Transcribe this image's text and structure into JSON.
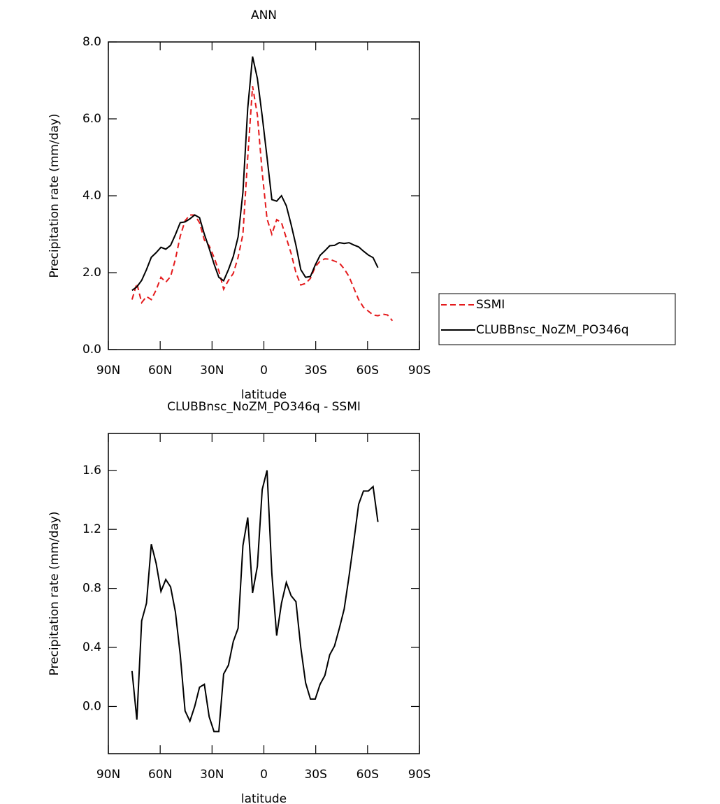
{
  "chart_data": [
    {
      "type": "line",
      "title": "ANN",
      "xlabel": "latitude",
      "ylabel": "Precipitation rate (mm/day)",
      "x": [
        76.3,
        73.51,
        70.72,
        67.93,
        65.14,
        62.35,
        59.56,
        56.77,
        53.98,
        51.19,
        48.4,
        45.61,
        42.82,
        40.03,
        37.24,
        34.45,
        31.66,
        28.87,
        26.08,
        23.29,
        20.5,
        17.71,
        14.92,
        12.13,
        9.34,
        6.55,
        3.76,
        0.97,
        -1.82,
        -4.61,
        -7.4,
        -10.19,
        -12.98,
        -15.77,
        -18.56,
        -21.35,
        -24.14,
        -26.93,
        -29.72,
        -32.51,
        -35.3,
        -38.09,
        -40.88,
        -43.67,
        -46.46,
        -49.25,
        -52.04,
        -54.83,
        -57.62,
        -60.41,
        -63.2,
        -65.99,
        -68.78,
        -71.57,
        -74.36
      ],
      "series": [
        {
          "name": "SSMI",
          "color": "#e41a1c",
          "dash": true,
          "values": [
            1.3,
            1.72,
            1.22,
            1.38,
            1.3,
            1.55,
            1.88,
            1.75,
            1.9,
            2.35,
            2.95,
            3.35,
            3.5,
            3.5,
            3.3,
            2.85,
            2.7,
            2.4,
            2.05,
            1.57,
            1.8,
            1.98,
            2.4,
            3.0,
            5.0,
            6.85,
            6.1,
            4.6,
            3.4,
            3.0,
            3.38,
            3.3,
            2.9,
            2.5,
            2.0,
            1.68,
            1.72,
            1.85,
            2.15,
            2.3,
            2.36,
            2.35,
            2.3,
            2.25,
            2.1,
            1.9,
            1.6,
            1.3,
            1.1,
            1.0,
            0.9,
            0.88,
            0.92,
            0.9,
            0.75
          ]
        },
        {
          "name": "CLUBBnsc_NoZM_PO346q",
          "color": "#000000",
          "dash": false,
          "values": [
            1.54,
            1.63,
            1.8,
            2.08,
            2.4,
            2.52,
            2.66,
            2.61,
            2.71,
            2.99,
            3.3,
            3.32,
            3.4,
            3.5,
            3.43,
            3.0,
            2.63,
            2.23,
            1.88,
            1.79,
            2.08,
            2.42,
            2.93,
            4.09,
            6.28,
            7.62,
            7.05,
            6.07,
            5.0,
            3.9,
            3.86,
            4.0,
            3.74,
            3.25,
            2.71,
            2.08,
            1.88,
            1.9,
            2.2,
            2.45,
            2.57,
            2.7,
            2.71,
            2.78,
            2.76,
            2.78,
            2.72,
            2.67,
            2.56,
            2.46,
            2.39,
            2.13,
            null,
            null,
            null
          ]
        }
      ],
      "xlim": [
        90,
        -90
      ],
      "xticks": [
        {
          "value": 90,
          "label": "90N"
        },
        {
          "value": 60,
          "label": "60N"
        },
        {
          "value": 30,
          "label": "30N"
        },
        0,
        {
          "value": -30,
          "label": "30S"
        },
        {
          "value": -60,
          "label": "60S"
        },
        {
          "value": -90,
          "label": "90S"
        }
      ],
      "ylim": [
        0,
        8
      ],
      "yticks": [
        {
          "value": 0,
          "label": "0.0"
        },
        {
          "value": 2,
          "label": "2.0"
        },
        {
          "value": 4,
          "label": "4.0"
        },
        {
          "value": 6,
          "label": "6.0"
        },
        {
          "value": 8,
          "label": "8.0"
        }
      ],
      "legend": "right"
    },
    {
      "type": "line",
      "title": "CLUBBnsc_NoZM_PO346q - SSMI",
      "xlabel": "latitude",
      "ylabel": "Precipitation rate (mm/day)",
      "x": [
        76.3,
        73.51,
        70.72,
        67.93,
        65.14,
        62.35,
        59.56,
        56.77,
        53.98,
        51.19,
        48.4,
        45.61,
        42.82,
        40.03,
        37.24,
        34.45,
        31.66,
        28.87,
        26.08,
        23.29,
        20.5,
        17.71,
        14.92,
        12.13,
        9.34,
        6.55,
        3.76,
        0.97,
        -1.82,
        -4.61,
        -7.4,
        -10.19,
        -12.98,
        -15.77,
        -18.56,
        -21.35,
        -24.14,
        -26.93,
        -29.72,
        -32.51,
        -35.3,
        -38.09,
        -40.88,
        -43.67,
        -46.46,
        -49.25,
        -52.04,
        -54.83,
        -57.62,
        -60.41,
        -63.2,
        -65.99
      ],
      "series": [
        {
          "color": "#000000",
          "dash": false,
          "values": [
            0.24,
            -0.09,
            0.58,
            0.7,
            1.1,
            0.97,
            0.78,
            0.86,
            0.81,
            0.64,
            0.35,
            -0.03,
            -0.1,
            0.0,
            0.13,
            0.15,
            -0.07,
            -0.17,
            -0.17,
            0.22,
            0.28,
            0.44,
            0.53,
            1.09,
            1.28,
            0.77,
            0.95,
            1.47,
            1.6,
            0.9,
            0.48,
            0.7,
            0.84,
            0.75,
            0.71,
            0.4,
            0.16,
            0.05,
            0.05,
            0.15,
            0.21,
            0.35,
            0.41,
            0.53,
            0.66,
            0.88,
            1.12,
            1.37,
            1.46,
            1.46,
            1.49,
            1.25
          ]
        }
      ],
      "xlim": [
        90,
        -90
      ],
      "xticks": [
        {
          "value": 90,
          "label": "90N"
        },
        {
          "value": 60,
          "label": "60N"
        },
        {
          "value": 30,
          "label": "30N"
        },
        0,
        {
          "value": -30,
          "label": "30S"
        },
        {
          "value": -60,
          "label": "60S"
        },
        {
          "value": -90,
          "label": "90S"
        }
      ],
      "ylim": [
        -0.32,
        1.85
      ],
      "yticks": [
        {
          "value": 0,
          "label": "0.0"
        },
        {
          "value": 0.4,
          "label": "0.4"
        },
        {
          "value": 0.8,
          "label": "0.8"
        },
        {
          "value": 1.2,
          "label": "1.2"
        },
        {
          "value": 1.6,
          "label": "1.6"
        }
      ]
    }
  ]
}
